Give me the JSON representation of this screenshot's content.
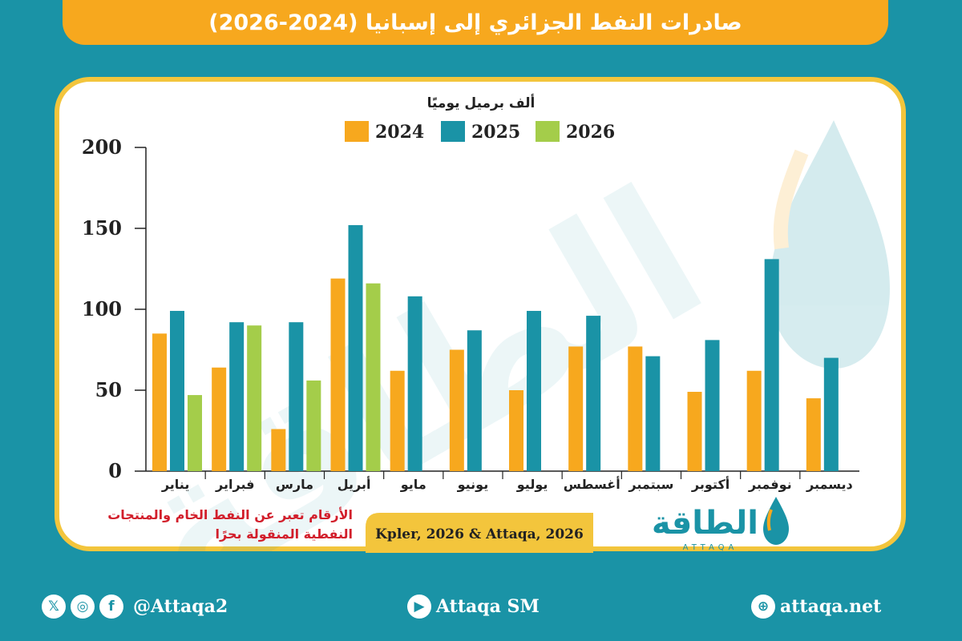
{
  "header": {
    "title": "صادرات النفط الجزائري إلى إسبانيا (2024-2026)"
  },
  "chart_data": {
    "type": "bar",
    "title": "صادرات النفط الجزائري إلى إسبانيا (2024-2026)",
    "ylabel": "ألف برميل يوميًا",
    "ylim": [
      0,
      200
    ],
    "yticks": [
      "200",
      "150",
      "100",
      "50",
      "0"
    ],
    "categories": [
      "يناير",
      "فبراير",
      "مارس",
      "أبريل",
      "مايو",
      "يونيو",
      "يوليو",
      "أغسطس",
      "سبتمبر",
      "أكتوبر",
      "نوفمبر",
      "ديسمبر"
    ],
    "series": [
      {
        "name": "2024",
        "color": "#f7a81e",
        "values": [
          85,
          64,
          26,
          119,
          62,
          75,
          50,
          77,
          77,
          49,
          62,
          45
        ]
      },
      {
        "name": "2025",
        "color": "#1a93a6",
        "values": [
          99,
          92,
          92,
          152,
          108,
          87,
          99,
          96,
          71,
          81,
          131,
          70
        ]
      },
      {
        "name": "2026",
        "color": "#a4cd4a",
        "values": [
          47,
          90,
          56,
          116,
          null,
          null,
          null,
          null,
          null,
          null,
          null,
          null
        ]
      }
    ],
    "legend_position": "top",
    "grid": false
  },
  "note": {
    "line1": "الأرقام تعبر عن النفط الخام والمنتجات",
    "line2": "النفطية المنقولة بحرًا"
  },
  "source": "Kpler, 2026 & Attaqa, 2026",
  "logo": {
    "text": "الطاقة",
    "subtext": "ATTAQA"
  },
  "footer": {
    "social_handle": "@Attaqa2",
    "youtube": "Attaqa SM",
    "website": "attaqa.net"
  },
  "colors": {
    "orange": "#f7a81e",
    "teal": "#1a93a6",
    "green": "#a4cd4a",
    "border": "#f3c53c",
    "note_red": "#d21e2b"
  }
}
